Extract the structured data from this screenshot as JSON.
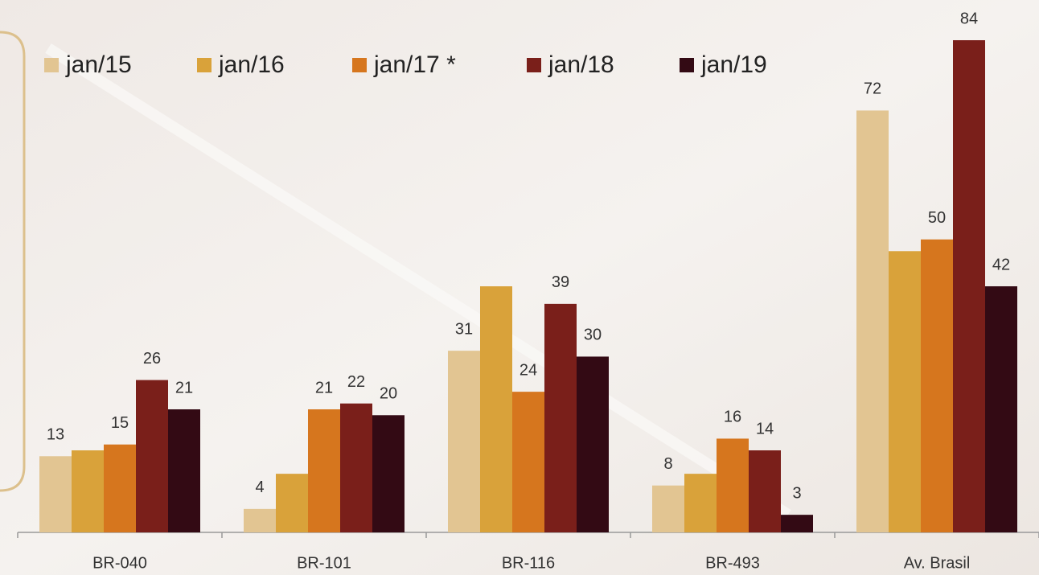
{
  "chart_data": {
    "type": "bar",
    "categories": [
      "BR-040",
      "BR-101",
      "BR-116",
      "BR-493",
      "Av. Brasil"
    ],
    "series": [
      {
        "name": "jan/15",
        "color": "#e2c592",
        "values": [
          13,
          4,
          31,
          8,
          72
        ]
      },
      {
        "name": "jan/16",
        "color": "#d9a23a",
        "values": [
          14,
          10,
          42,
          10,
          48
        ],
        "data_labels": false
      },
      {
        "name": "jan/17 *",
        "color": "#d6761e",
        "values": [
          15,
          21,
          24,
          16,
          50
        ]
      },
      {
        "name": "jan/18",
        "color": "#7a1f1a",
        "values": [
          26,
          22,
          39,
          14,
          84
        ]
      },
      {
        "name": "jan/19",
        "color": "#330a14",
        "values": [
          21,
          20,
          30,
          3,
          42
        ]
      }
    ],
    "legend": "top-left"
  }
}
